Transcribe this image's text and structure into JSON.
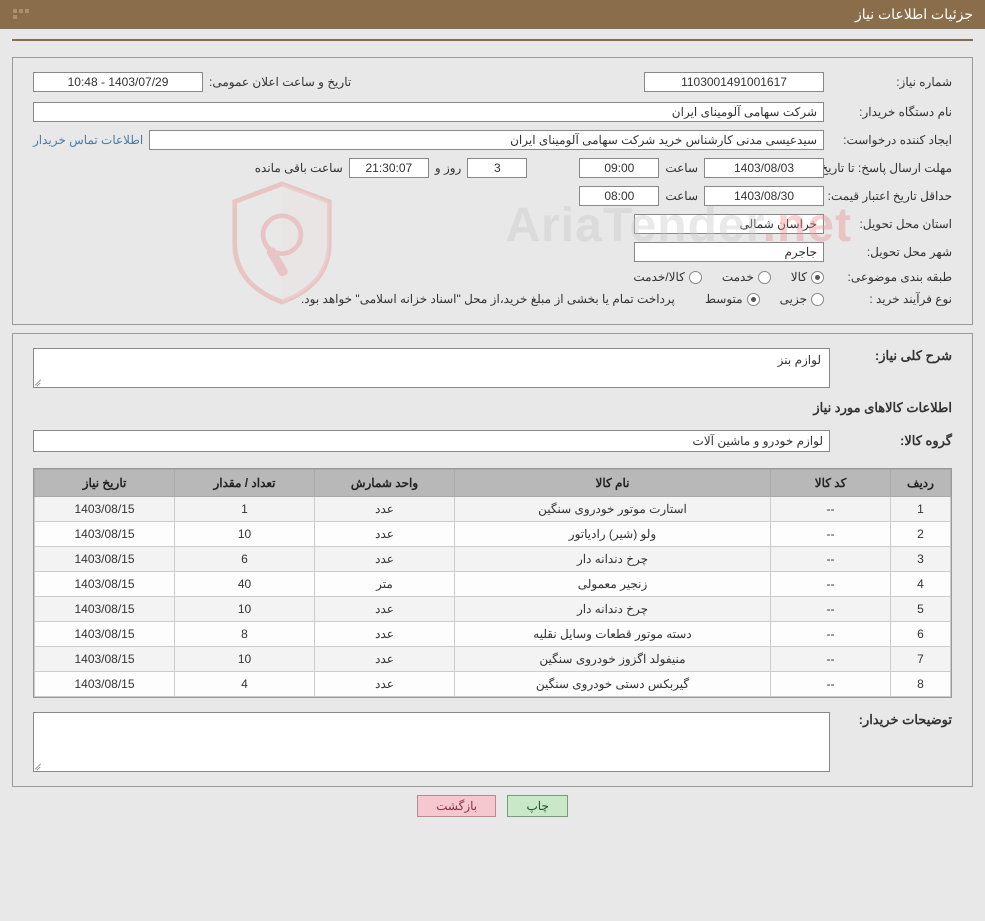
{
  "header": {
    "title": "جزئیات اطلاعات نیاز"
  },
  "form": {
    "need_number_label": "شماره نیاز:",
    "need_number": "1103001491001617",
    "announce_datetime_label": "تاریخ و ساعت اعلان عمومی:",
    "announce_datetime": "1403/07/29 - 10:48",
    "buyer_org_label": "نام دستگاه خریدار:",
    "buyer_org": "شرکت سهامی آلومینای ایران",
    "requester_label": "ایجاد کننده درخواست:",
    "requester": "سیدعیسی مدنی کارشناس خرید شرکت سهامی آلومینای ایران",
    "buyer_contact_link": "اطلاعات تماس خریدار",
    "deadline_label": "مهلت ارسال پاسخ:",
    "until_date_label": "تا تاریخ:",
    "deadline_date": "1403/08/03",
    "time_label": "ساعت",
    "deadline_time": "09:00",
    "days_remaining": "3",
    "day_and_label": "روز و",
    "time_remaining": "21:30:07",
    "hours_remaining_label": "ساعت باقی مانده",
    "min_validity_label": "حداقل تاریخ اعتبار قیمت:",
    "min_validity_date": "1403/08/30",
    "min_validity_time": "08:00",
    "province_label": "استان محل تحویل:",
    "province": "خراسان شمالی",
    "city_label": "شهر محل تحویل:",
    "city": "جاجرم",
    "category_label": "طبقه بندی موضوعی:",
    "radio_goods": "کالا",
    "radio_service": "خدمت",
    "radio_goods_service": "کالا/خدمت",
    "purchase_type_label": "نوع فرآیند خرید :",
    "radio_minor": "جزیی",
    "radio_medium": "متوسط",
    "payment_note": "پرداخت تمام یا بخشی از مبلغ خرید،از محل \"اسناد خزانه اسلامی\" خواهد بود."
  },
  "desc": {
    "general_label": "شرح کلی نیاز:",
    "general_value": "لوازم بنز",
    "items_title": "اطلاعات کالاهای مورد نیاز",
    "group_label": "گروه کالا:",
    "group_value": "لوازم خودرو و ماشین آلات",
    "buyer_notes_label": "توضیحات خریدار:"
  },
  "table": {
    "columns": {
      "row": "ردیف",
      "code": "کد کالا",
      "name": "نام کالا",
      "unit": "واحد شمارش",
      "qty": "تعداد / مقدار",
      "need_date": "تاریخ نیاز"
    },
    "col_widths": [
      "60px",
      "120px",
      "auto",
      "140px",
      "140px",
      "140px"
    ],
    "header_bg": "#b8b8b8",
    "rows": [
      {
        "row": "1",
        "code": "--",
        "name": "استارت موتور خودروی سنگین",
        "unit": "عدد",
        "qty": "1",
        "date": "1403/08/15"
      },
      {
        "row": "2",
        "code": "--",
        "name": "ولو (شیر) رادیاتور",
        "unit": "عدد",
        "qty": "10",
        "date": "1403/08/15"
      },
      {
        "row": "3",
        "code": "--",
        "name": "چرخ دندانه دار",
        "unit": "عدد",
        "qty": "6",
        "date": "1403/08/15"
      },
      {
        "row": "4",
        "code": "--",
        "name": "زنجیر معمولی",
        "unit": "متر",
        "qty": "40",
        "date": "1403/08/15"
      },
      {
        "row": "5",
        "code": "--",
        "name": "چرخ دندانه دار",
        "unit": "عدد",
        "qty": "10",
        "date": "1403/08/15"
      },
      {
        "row": "6",
        "code": "--",
        "name": "دسته موتور قطعات وسایل نقلیه",
        "unit": "عدد",
        "qty": "8",
        "date": "1403/08/15"
      },
      {
        "row": "7",
        "code": "--",
        "name": "منیفولد اگزوز خودروی سنگین",
        "unit": "عدد",
        "qty": "10",
        "date": "1403/08/15"
      },
      {
        "row": "8",
        "code": "--",
        "name": "گیربکس دستی خودروی سنگین",
        "unit": "عدد",
        "qty": "4",
        "date": "1403/08/15"
      }
    ]
  },
  "buttons": {
    "print": "چاپ",
    "back": "بازگشت"
  },
  "watermark": {
    "text_prefix": "AriaTender",
    "text_suffix": ".net"
  },
  "colors": {
    "header_bg": "#8a6d4a",
    "page_bg": "#e8e8e8",
    "link": "#4a7ba8",
    "btn_print_bg": "#c8e8c8",
    "btn_back_bg": "#f5c8d0",
    "table_header_bg": "#b8b8b8"
  }
}
